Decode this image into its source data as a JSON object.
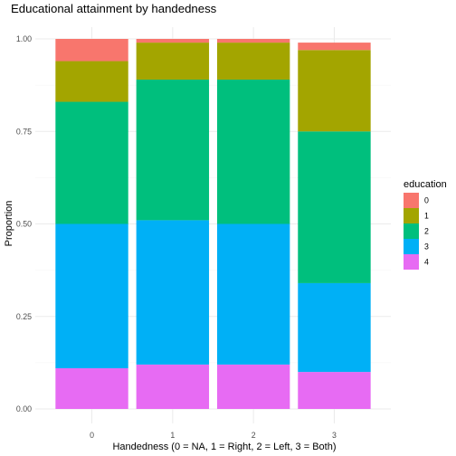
{
  "chart_data": {
    "type": "bar",
    "stacked": true,
    "title": "Educational attainment by handedness",
    "xlabel": "Handedness (0 = NA, 1 = Right, 2 = Left, 3 = Both)",
    "ylabel": "Proportion",
    "categories": [
      "0",
      "1",
      "2",
      "3"
    ],
    "ylim": [
      0,
      1
    ],
    "yticks": [
      "0.00",
      "0.25",
      "0.50",
      "0.75",
      "1.00"
    ],
    "grid": true,
    "legend": {
      "title": "education",
      "position": "right"
    },
    "series": [
      {
        "name": "0",
        "color": "#F8766D",
        "values": [
          0.06,
          0.01,
          0.01,
          0.02
        ]
      },
      {
        "name": "1",
        "color": "#A3A500",
        "values": [
          0.11,
          0.1,
          0.1,
          0.22
        ]
      },
      {
        "name": "2",
        "color": "#00BF7D",
        "values": [
          0.33,
          0.38,
          0.39,
          0.41
        ]
      },
      {
        "name": "3",
        "color": "#00B0F6",
        "values": [
          0.39,
          0.39,
          0.38,
          0.24
        ]
      },
      {
        "name": "4",
        "color": "#E76BF3",
        "values": [
          0.11,
          0.12,
          0.12,
          0.1
        ]
      }
    ]
  }
}
